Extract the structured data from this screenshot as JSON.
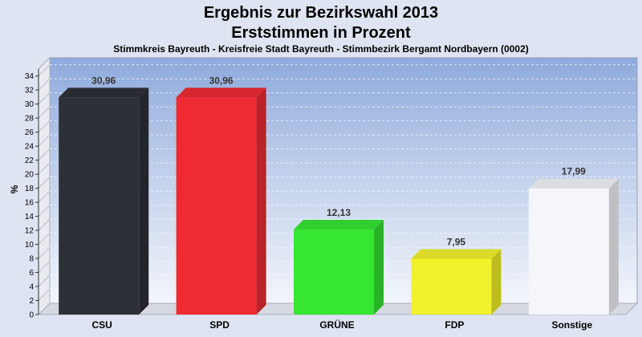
{
  "chart_data": {
    "type": "bar",
    "title": "Ergebnis zur Bezirkswahl 2013",
    "title_line2": "Erststimmen in Prozent",
    "subtitle": "Stimmkreis Bayreuth - Kreisfreie Stadt Bayreuth - Stimmbezirk Bergamt Nordbayern (0002)",
    "ylabel": "%",
    "xlabel": "",
    "ylim": [
      0,
      35
    ],
    "yticks": [
      0,
      2,
      4,
      6,
      8,
      10,
      12,
      14,
      16,
      18,
      20,
      22,
      24,
      26,
      28,
      30,
      32,
      34
    ],
    "categories": [
      "CSU",
      "SPD",
      "GRÜNE",
      "FDP",
      "Sonstige"
    ],
    "values": [
      30.96,
      30.96,
      12.13,
      7.95,
      17.99
    ],
    "value_labels": [
      "30,96",
      "30,96",
      "12,13",
      "7,95",
      "17,99"
    ],
    "colors": [
      "#2e3038",
      "#ee2a33",
      "#36e633",
      "#f2f22c",
      "#f4f6fa"
    ],
    "grid": true,
    "legend": "none"
  }
}
